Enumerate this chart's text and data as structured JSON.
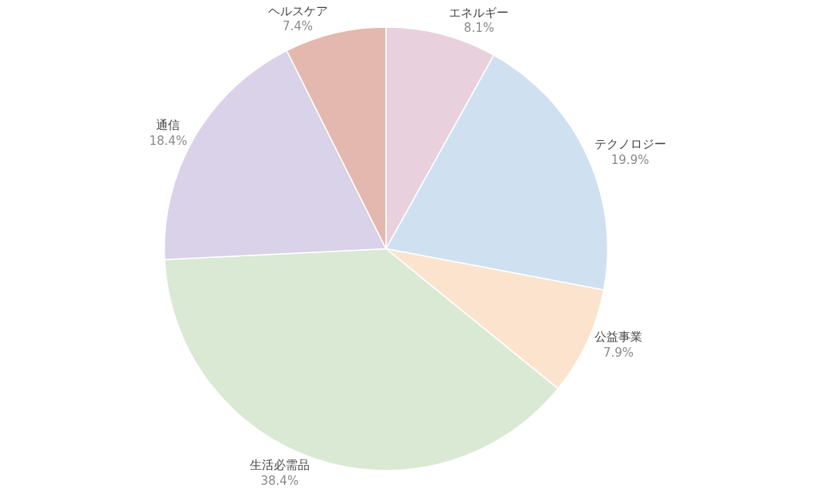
{
  "chart_data": {
    "type": "pie",
    "categories": [
      "エネルギー",
      "テクノロジー",
      "公益事業",
      "生活必需品",
      "通信",
      "ヘルスケア"
    ],
    "values": [
      8.1,
      19.9,
      7.9,
      38.4,
      18.4,
      7.4
    ],
    "value_labels": [
      "8.1%",
      "19.9%",
      "7.9%",
      "38.4%",
      "18.4%",
      "7.4%"
    ],
    "colors": [
      "#e8d1dc",
      "#cfe0f1",
      "#fbe3cd",
      "#d9e9d4",
      "#dad2e9",
      "#e4b8ae"
    ],
    "legend": false
  }
}
